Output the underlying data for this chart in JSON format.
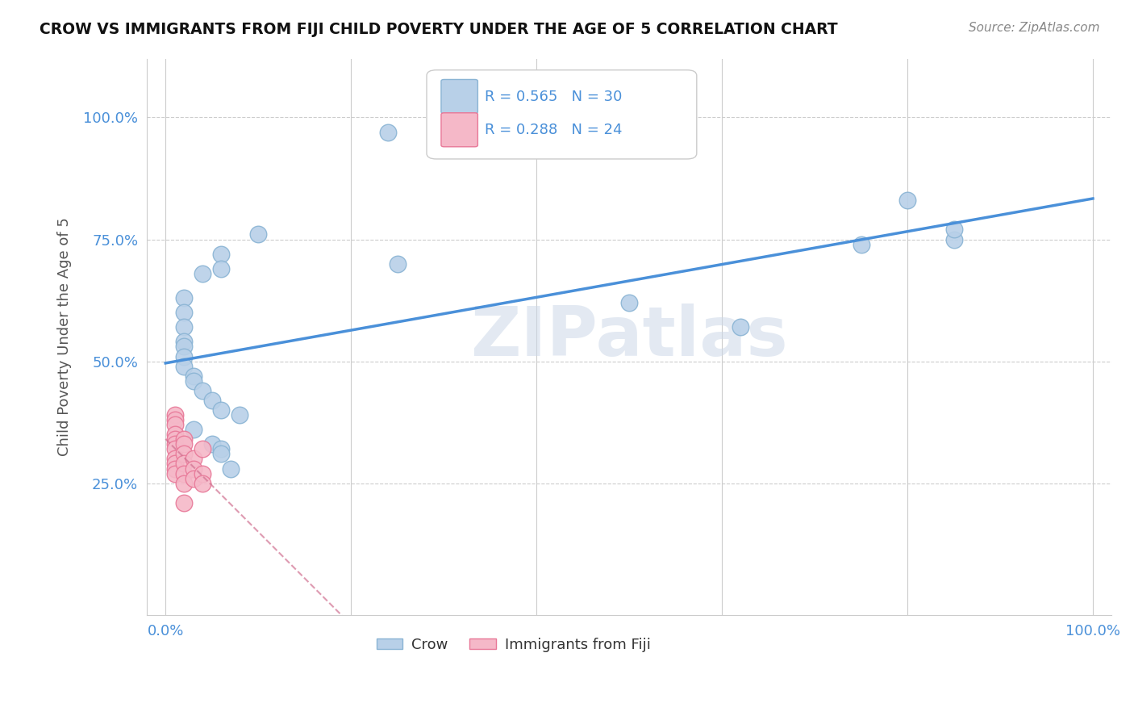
{
  "title": "CROW VS IMMIGRANTS FROM FIJI CHILD POVERTY UNDER THE AGE OF 5 CORRELATION CHART",
  "source": "Source: ZipAtlas.com",
  "ylabel": "Child Poverty Under the Age of 5",
  "watermark": "ZIPatlas",
  "crow_points": [
    [
      24,
      97
    ],
    [
      4,
      68
    ],
    [
      6,
      72
    ],
    [
      6,
      69
    ],
    [
      10,
      76
    ],
    [
      25,
      70
    ],
    [
      2,
      63
    ],
    [
      2,
      60
    ],
    [
      2,
      57
    ],
    [
      2,
      54
    ],
    [
      2,
      53
    ],
    [
      2,
      51
    ],
    [
      2,
      49
    ],
    [
      3,
      47
    ],
    [
      3,
      46
    ],
    [
      4,
      44
    ],
    [
      5,
      42
    ],
    [
      6,
      40
    ],
    [
      8,
      39
    ],
    [
      3,
      36
    ],
    [
      5,
      33
    ],
    [
      6,
      32
    ],
    [
      6,
      31
    ],
    [
      7,
      28
    ],
    [
      50,
      62
    ],
    [
      75,
      74
    ],
    [
      80,
      83
    ],
    [
      85,
      75
    ],
    [
      85,
      77
    ],
    [
      62,
      57
    ]
  ],
  "fiji_points": [
    [
      1,
      39
    ],
    [
      1,
      38
    ],
    [
      1,
      37
    ],
    [
      1,
      35
    ],
    [
      1,
      34
    ],
    [
      1,
      33
    ],
    [
      1,
      32
    ],
    [
      1,
      30
    ],
    [
      1,
      29
    ],
    [
      1,
      28
    ],
    [
      1,
      27
    ],
    [
      2,
      34
    ],
    [
      2,
      33
    ],
    [
      2,
      31
    ],
    [
      2,
      29
    ],
    [
      2,
      27
    ],
    [
      2,
      25
    ],
    [
      2,
      21
    ],
    [
      3,
      30
    ],
    [
      3,
      28
    ],
    [
      3,
      26
    ],
    [
      4,
      27
    ],
    [
      4,
      25
    ],
    [
      4,
      32
    ]
  ],
  "crow_color": "#b8d0e8",
  "crow_edge_color": "#8ab4d4",
  "fiji_color": "#f5b8c8",
  "fiji_edge_color": "#e87898",
  "crow_R": 0.565,
  "crow_N": 30,
  "fiji_R": 0.288,
  "fiji_N": 24,
  "crow_line_color": "#4a90d9",
  "fiji_line_color": "#d07090",
  "xlim": [
    -2,
    102
  ],
  "ylim": [
    -2,
    112
  ],
  "yticks": [
    25,
    50,
    75,
    100
  ],
  "ytick_labels": [
    "25.0%",
    "50.0%",
    "75.0%",
    "100.0%"
  ],
  "xticks": [
    0,
    20,
    40,
    60,
    80,
    100
  ],
  "xtick_labels": [
    "0.0%",
    "",
    "",
    "",
    "",
    "100.0%"
  ],
  "stat_color": "#4a90d9",
  "background_color": "#ffffff",
  "grid_color": "#cccccc"
}
